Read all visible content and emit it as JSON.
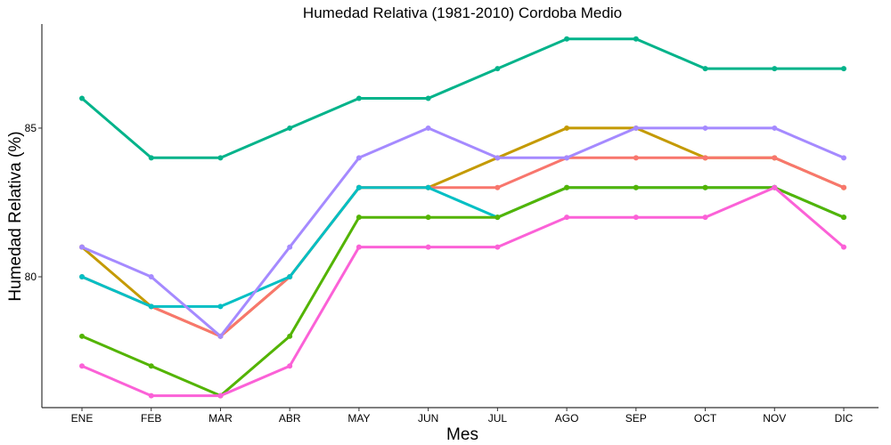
{
  "chart_data": {
    "type": "line",
    "title": "Humedad Relativa (1981-2010)  Cordoba Medio",
    "xlabel": "Mes",
    "ylabel": "Humedad Relativa  (%)",
    "categories": [
      "ENE",
      "FEB",
      "MAR",
      "ABR",
      "MAY",
      "JUN",
      "JUL",
      "AGO",
      "SEP",
      "OCT",
      "NOV",
      "DIC"
    ],
    "yticks": [
      80,
      85
    ],
    "ylim": [
      75.6,
      88.5
    ],
    "grid": false,
    "legend": "none",
    "series": [
      {
        "color": "#C49A00",
        "values": [
          81,
          79,
          78,
          80,
          83,
          83,
          84,
          85,
          85,
          84,
          84,
          83
        ]
      },
      {
        "color": "#F8766D",
        "values": [
          80,
          79,
          78,
          80,
          83,
          83,
          83,
          84,
          84,
          84,
          84,
          83
        ]
      },
      {
        "color": "#00BFC4",
        "values": [
          80,
          79,
          79,
          80,
          83,
          83,
          82,
          83,
          83,
          83,
          83,
          82
        ]
      },
      {
        "color": "#53B400",
        "values": [
          78,
          77,
          76,
          78,
          82,
          82,
          82,
          83,
          83,
          83,
          83,
          82
        ]
      },
      {
        "color": "#FB61D7",
        "values": [
          77,
          76,
          76,
          77,
          81,
          81,
          81,
          82,
          82,
          82,
          83,
          81
        ]
      },
      {
        "color": "#A58AFF",
        "values": [
          81,
          80,
          78,
          81,
          84,
          85,
          84,
          84,
          85,
          85,
          85,
          84
        ]
      },
      {
        "color": "#00B38A",
        "values": [
          86,
          84,
          84,
          85,
          86,
          86,
          87,
          88,
          88,
          87,
          87,
          87
        ]
      }
    ]
  }
}
